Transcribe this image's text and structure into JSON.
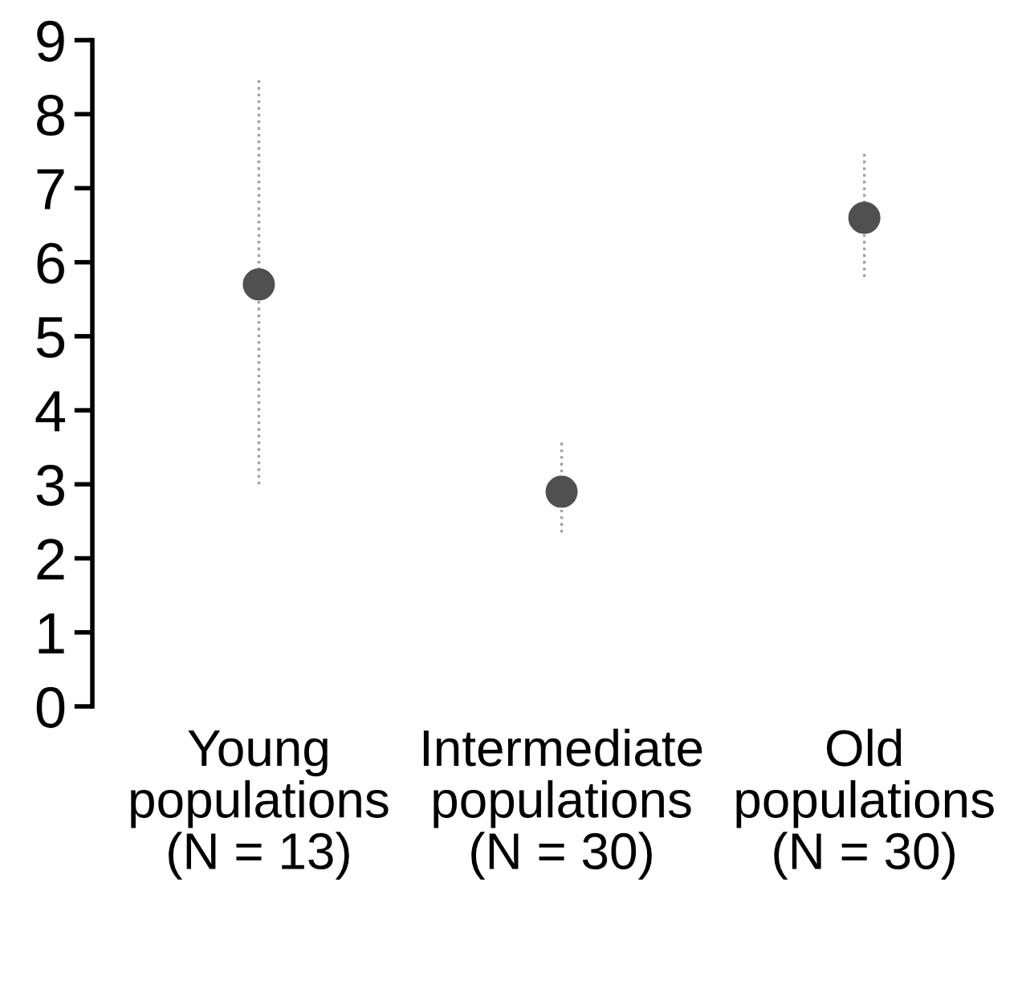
{
  "chart_data": {
    "type": "scatter",
    "categories": [
      "Young\npopulations\n(N = 13)",
      "Intermediate\npopulations\n(N = 30)",
      "Old\npopulations\n(N = 30)"
    ],
    "values": [
      5.7,
      2.9,
      6.6
    ],
    "errors": [
      [
        3.0,
        8.5
      ],
      [
        2.35,
        3.6
      ],
      [
        5.8,
        7.5
      ]
    ],
    "color": "#505050",
    "marker": "circle",
    "ylim": [
      0,
      9
    ],
    "yticks": [
      0,
      1,
      2,
      3,
      4,
      5,
      6,
      7,
      8,
      9
    ],
    "grid": false
  }
}
